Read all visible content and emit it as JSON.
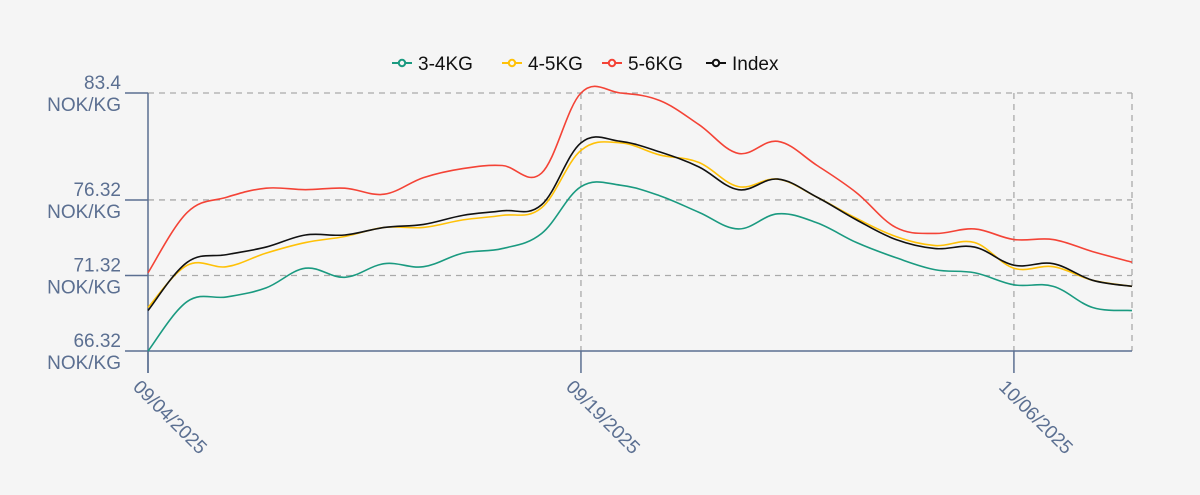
{
  "chart_data": {
    "type": "line",
    "title": "",
    "xlabel": "",
    "ylabel": "",
    "legend_position": "top",
    "grid": true,
    "ylim": [
      66.32,
      83.4
    ],
    "y_ticks": [
      {
        "value": 83.4,
        "label": "83.4",
        "unit": "NOK/KG"
      },
      {
        "value": 76.32,
        "label": "76.32",
        "unit": "NOK/KG"
      },
      {
        "value": 71.32,
        "label": "71.32",
        "unit": "NOK/KG"
      },
      {
        "value": 66.32,
        "label": "66.32",
        "unit": "NOK/KG"
      }
    ],
    "x_ticks": [
      "09/04/2025",
      "09/19/2025",
      "10/06/2025"
    ],
    "x": [
      "09/04/2025",
      "09/05/2025",
      "09/08/2025",
      "09/09/2025",
      "09/10/2025",
      "09/11/2025",
      "09/12/2025",
      "09/15/2025",
      "09/16/2025",
      "09/17/2025",
      "09/18/2025",
      "09/19/2025",
      "09/22/2025",
      "09/23/2025",
      "09/24/2025",
      "09/25/2025",
      "09/26/2025",
      "09/29/2025",
      "09/30/2025",
      "10/01/2025",
      "10/02/2025",
      "10/03/2025",
      "10/06/2025",
      "10/07/2025",
      "10/08/2025",
      "10/09/2025"
    ],
    "series": [
      {
        "name": "3-4KG",
        "color": "#1a9a80",
        "values": [
          66.32,
          69.6,
          69.9,
          70.5,
          71.8,
          71.2,
          72.1,
          71.9,
          72.8,
          73.1,
          74.1,
          77.2,
          77.3,
          76.6,
          75.5,
          74.4,
          75.4,
          74.8,
          73.5,
          72.5,
          71.7,
          71.5,
          70.7,
          70.6,
          69.2,
          69.0
        ]
      },
      {
        "name": "4-5KG",
        "color": "#ffc107",
        "values": [
          69.2,
          72.0,
          71.9,
          72.8,
          73.5,
          73.9,
          74.5,
          74.5,
          75.0,
          75.3,
          75.8,
          79.6,
          80.1,
          79.3,
          78.8,
          77.2,
          77.7,
          76.5,
          75.1,
          73.9,
          73.3,
          73.5,
          71.8,
          71.9,
          71.0,
          70.6
        ]
      },
      {
        "name": "5-6KG",
        "color": "#f44336",
        "values": [
          71.5,
          75.5,
          76.5,
          77.1,
          77.0,
          77.1,
          76.7,
          77.8,
          78.4,
          78.6,
          78.1,
          83.4,
          83.4,
          82.9,
          81.3,
          79.4,
          80.2,
          78.6,
          76.8,
          74.5,
          74.1,
          74.4,
          73.7,
          73.7,
          72.9,
          72.2
        ]
      },
      {
        "name": "Index",
        "color": "#111111",
        "values": [
          69.0,
          72.2,
          72.7,
          73.2,
          74.0,
          74.0,
          74.5,
          74.7,
          75.3,
          75.6,
          76.0,
          80.1,
          80.2,
          79.5,
          78.5,
          77.0,
          77.7,
          76.5,
          75.0,
          73.7,
          73.1,
          73.2,
          72.0,
          72.1,
          71.0,
          70.6
        ]
      }
    ]
  }
}
